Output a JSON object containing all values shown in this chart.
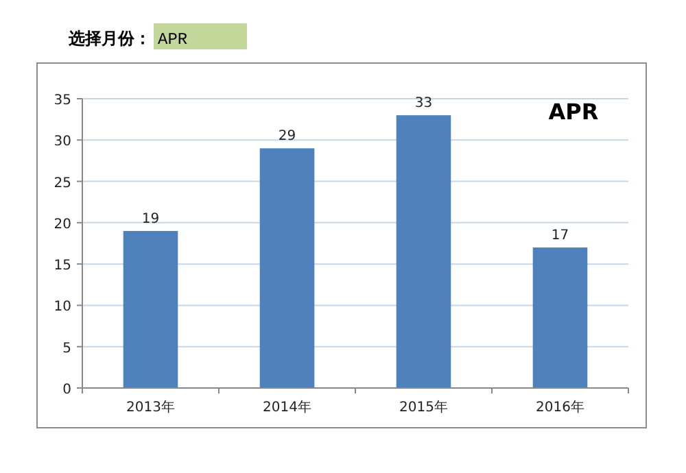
{
  "chart_data": {
    "type": "bar",
    "title": "APR",
    "annotations": [
      "选择月份：",
      "APR"
    ],
    "categories": [
      "2013年",
      "2014年",
      "2015年",
      "2016年"
    ],
    "values": [
      19,
      29,
      33,
      17
    ],
    "color": "#4f81bd",
    "ylim": [
      0,
      35
    ],
    "yticks": [
      0,
      5,
      10,
      15,
      20,
      25,
      30,
      35
    ],
    "grid": "y",
    "data_labels": true
  }
}
